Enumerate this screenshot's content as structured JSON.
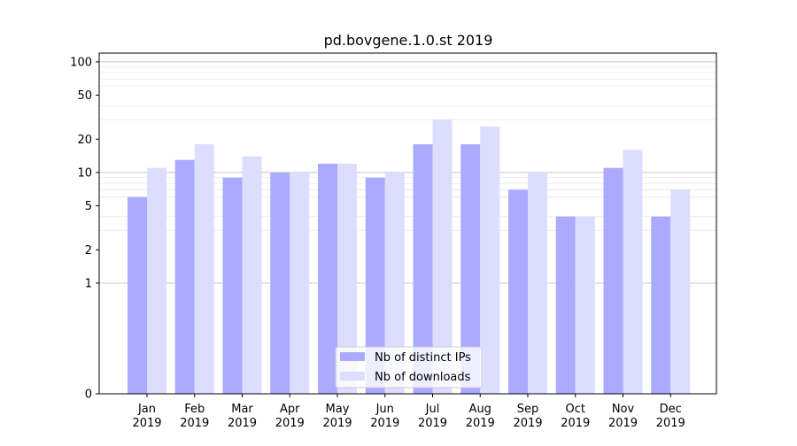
{
  "chart_data": {
    "type": "bar",
    "title": "pd.bovgene.1.0.st 2019",
    "xlabel": "",
    "ylabel": "",
    "y_scale": "symlog",
    "ylim": [
      0,
      120
    ],
    "y_ticks": [
      0,
      1,
      2,
      5,
      10,
      20,
      50,
      100
    ],
    "y_tick_labels": [
      "0",
      "1",
      "2",
      "5",
      "10",
      "20",
      "50",
      "100"
    ],
    "categories": [
      "Jan\n2019",
      "Feb\n2019",
      "Mar\n2019",
      "Apr\n2019",
      "May\n2019",
      "Jun\n2019",
      "Jul\n2019",
      "Aug\n2019",
      "Sep\n2019",
      "Oct\n2019",
      "Nov\n2019",
      "Dec\n2019"
    ],
    "series": [
      {
        "name": "Nb of distinct IPs",
        "color": "#aaaaff",
        "values": [
          6,
          13,
          9,
          10,
          12,
          9,
          18,
          18,
          7,
          4,
          11,
          4
        ]
      },
      {
        "name": "Nb of downloads",
        "color": "#ddddff",
        "values": [
          11,
          18,
          14,
          10,
          12,
          10,
          30,
          26,
          10,
          4,
          16,
          7
        ]
      }
    ],
    "grid": true,
    "legend_position": "bottom-center"
  }
}
